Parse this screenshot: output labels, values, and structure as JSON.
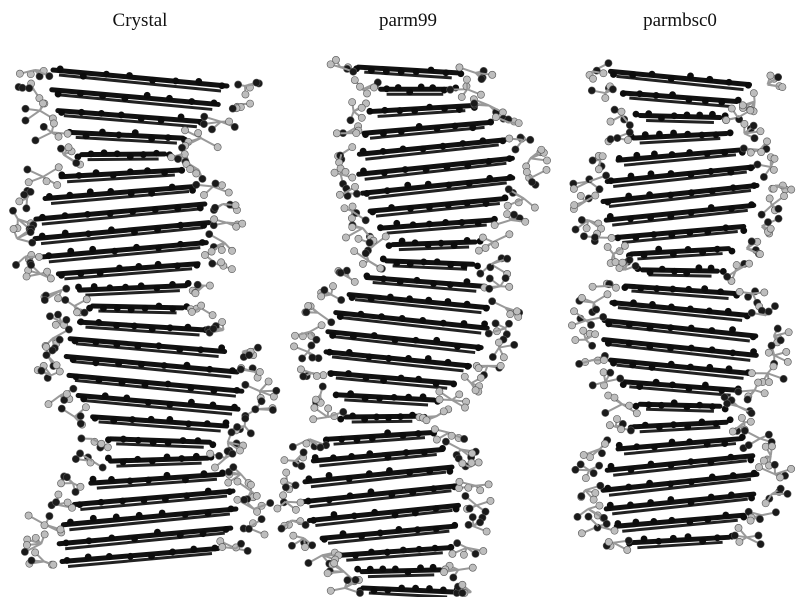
{
  "panels": [
    {
      "label": "Crystal"
    },
    {
      "label": "parm99"
    },
    {
      "label": "parmbsc0"
    }
  ]
}
